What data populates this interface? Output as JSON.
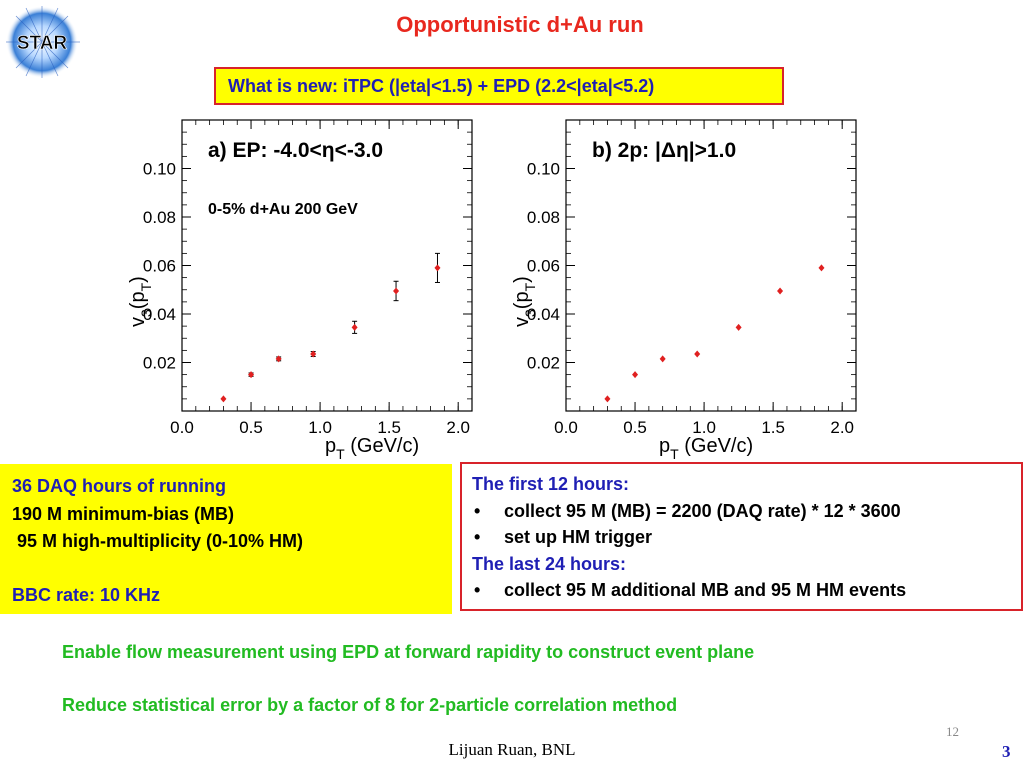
{
  "slide": {
    "title": "Opportunistic d+Au run",
    "logo_text": "STAR",
    "whats_new": "What is new: iTPC (|eta|<1.5) + EPD (2.2<|eta|<5.2)",
    "author": "Lijuan Ruan, BNL",
    "slide_number_small": "12",
    "slide_number": "3"
  },
  "chart_data": [
    {
      "type": "scatter",
      "title": "a) EP: -4.0<η<-3.0",
      "subtitle": "0-5% d+Au 200 GeV",
      "xlabel": "p_T (GeV/c)",
      "ylabel": "v_3(p_T)",
      "xlim": [
        0.0,
        2.1
      ],
      "ylim": [
        0.0,
        0.12
      ],
      "xticks": [
        "0.0",
        "0.5",
        "1.0",
        "1.5",
        "2.0"
      ],
      "yticks": [
        "0.02",
        "0.04",
        "0.06",
        "0.08",
        "0.10"
      ],
      "x": [
        0.3,
        0.5,
        0.7,
        0.95,
        1.25,
        1.55,
        1.85
      ],
      "y": [
        0.005,
        0.015,
        0.0215,
        0.0235,
        0.0345,
        0.0495,
        0.059
      ],
      "yerr": [
        0.0005,
        0.0007,
        0.0008,
        0.001,
        0.0025,
        0.004,
        0.006
      ],
      "marker_color": "#e02020"
    },
    {
      "type": "scatter",
      "title": "b) 2p: |Δη|>1.0",
      "subtitle": "",
      "xlabel": "p_T (GeV/c)",
      "ylabel": "v_3(p_T)",
      "xlim": [
        0.0,
        2.1
      ],
      "ylim": [
        0.0,
        0.12
      ],
      "xticks": [
        "0.0",
        "0.5",
        "1.0",
        "1.5",
        "2.0"
      ],
      "yticks": [
        "0.02",
        "0.04",
        "0.06",
        "0.08",
        "0.10"
      ],
      "x": [
        0.3,
        0.5,
        0.7,
        0.95,
        1.25,
        1.55,
        1.85
      ],
      "y": [
        0.005,
        0.015,
        0.0215,
        0.0235,
        0.0345,
        0.0495,
        0.059
      ],
      "yerr": [
        0.0003,
        0.0003,
        0.0003,
        0.0003,
        0.0004,
        0.0005,
        0.0006
      ],
      "marker_color": "#e02020"
    }
  ],
  "left_box": {
    "heading": "36 DAQ hours of running",
    "line1": "190 M minimum-bias (MB)",
    "line2": " 95 M high-multiplicity (0-10% HM)",
    "line3": "BBC rate: 10 KHz"
  },
  "right_box": {
    "heading1": "The first 12 hours:",
    "bullet1": "collect 95 M (MB) = 2200 (DAQ rate) * 12 * 3600",
    "bullet2": "set up HM trigger",
    "heading2": "The last 24 hours:",
    "bullet3": "collect 95 M additional MB and 95 M HM events",
    "bullet_char": "•"
  },
  "conclusions": {
    "line1": "Enable flow measurement using EPD at forward rapidity to construct event plane",
    "line2": "Reduce statistical error by a factor of 8 for 2-particle correlation method"
  },
  "colors": {
    "title_red": "#e8281e",
    "blue": "#1f1fb4",
    "yellow": "#ffff00",
    "green": "#22bb22",
    "marker": "#e02020"
  }
}
